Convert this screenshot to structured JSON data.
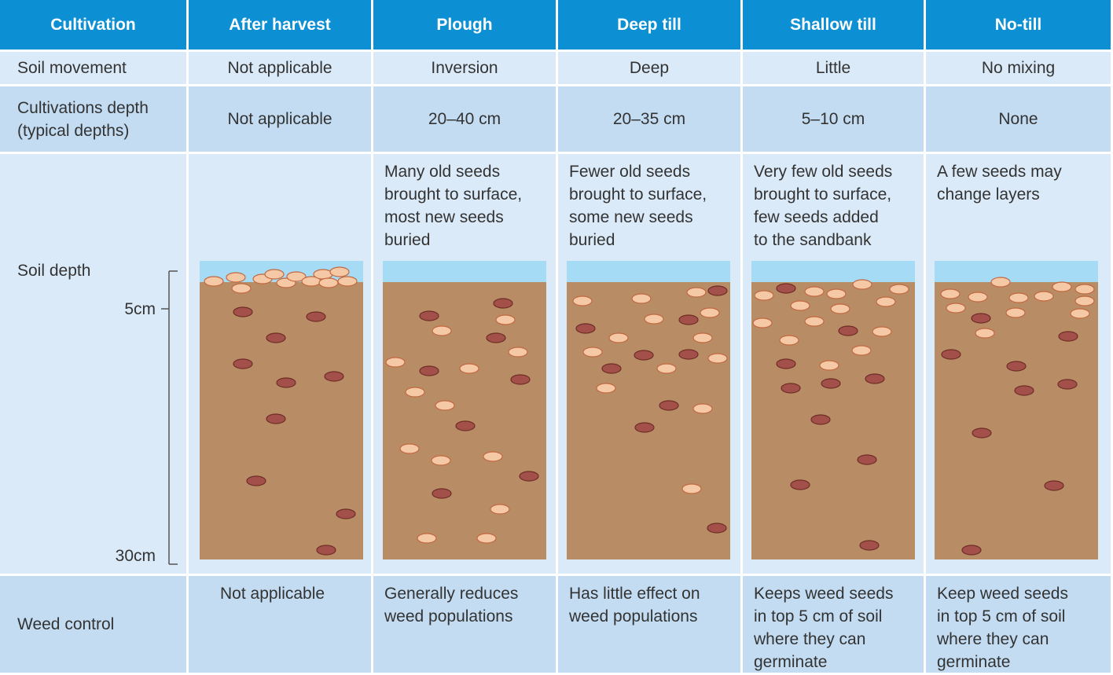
{
  "table": {
    "header": [
      "Cultivation",
      "After harvest",
      "Plough",
      "Deep till",
      "Shallow till",
      "No-till"
    ],
    "rows": [
      {
        "label": [
          "Soil movement"
        ],
        "cells": [
          [
            "Not applicable"
          ],
          [
            "Inversion"
          ],
          [
            "Deep"
          ],
          [
            "Little"
          ],
          [
            "No mixing"
          ]
        ]
      },
      {
        "label": [
          "Cultivations depth",
          "(typical depths)"
        ],
        "cells": [
          [
            "Not applicable"
          ],
          [
            "20–40 cm"
          ],
          [
            "20–35 cm"
          ],
          [
            "5–10 cm"
          ],
          [
            "None"
          ]
        ]
      },
      {
        "label": [
          "Soil depth"
        ],
        "cells": [
          [],
          [
            "Many old seeds",
            "brought to surface,",
            "most new seeds",
            "buried"
          ],
          [
            "Fewer old seeds",
            "brought to surface,",
            "some new seeds",
            "buried"
          ],
          [
            "Very few old seeds",
            "brought to surface,",
            "few seeds added",
            "to the sandbank"
          ],
          [
            "A few seeds may",
            "change layers"
          ]
        ]
      },
      {
        "label": [
          "Weed control"
        ],
        "cells": [
          [
            "Not applicable"
          ],
          [
            "Generally reduces",
            "weed populations"
          ],
          [
            "Has little effect on",
            "weed populations"
          ],
          [
            "Keeps weed seeds",
            "in top 5 cm of soil",
            "where they can",
            "germinate"
          ],
          [
            "Keep weed seeds",
            "in top 5 cm of soil",
            "where they can",
            "germinate"
          ]
        ]
      }
    ],
    "scale": [
      "5cm",
      "30cm"
    ]
  }
}
